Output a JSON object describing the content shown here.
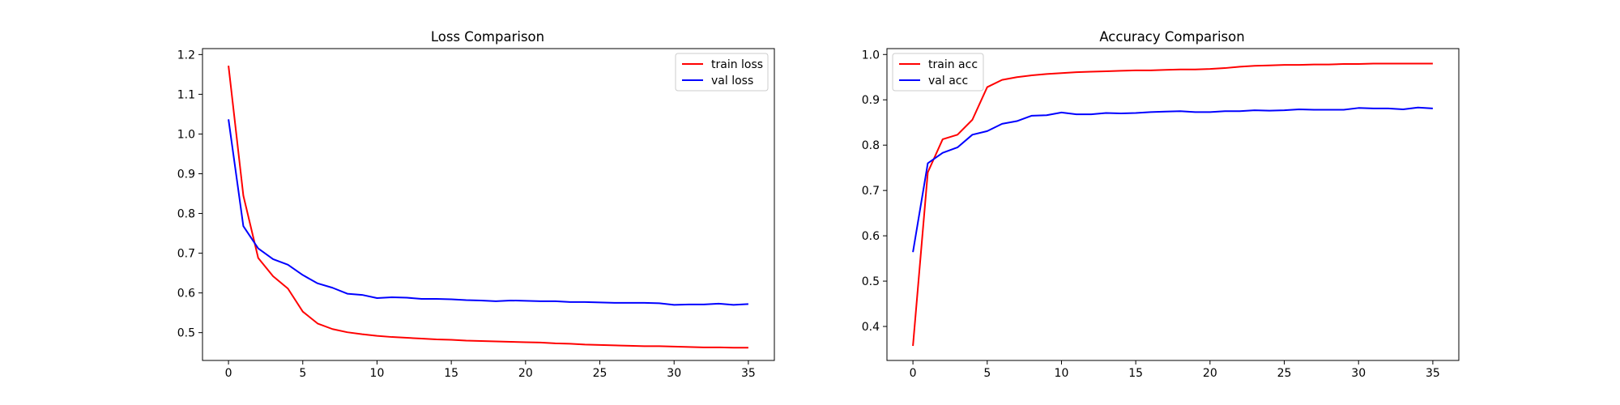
{
  "chart_data": [
    {
      "type": "line",
      "title": "Loss Comparison",
      "xlabel": "",
      "ylabel": "",
      "xlim": [
        -1.75,
        36.75
      ],
      "ylim": [
        0.43,
        1.215
      ],
      "xticks": [
        0,
        5,
        10,
        15,
        20,
        25,
        30,
        35
      ],
      "yticks": [
        0.5,
        0.6,
        0.7,
        0.8,
        0.9,
        1.0,
        1.1,
        1.2
      ],
      "legend": "top-right",
      "grid": false,
      "x": [
        0,
        1,
        2,
        3,
        4,
        5,
        6,
        7,
        8,
        9,
        10,
        11,
        12,
        13,
        14,
        15,
        16,
        17,
        18,
        19,
        20,
        21,
        22,
        23,
        24,
        25,
        26,
        27,
        28,
        29,
        30,
        31,
        32,
        33,
        34,
        35
      ],
      "series": [
        {
          "name": "train loss",
          "color": "#ff0000",
          "values": [
            1.172,
            0.845,
            0.688,
            0.642,
            0.611,
            0.553,
            0.523,
            0.509,
            0.501,
            0.496,
            0.492,
            0.489,
            0.487,
            0.485,
            0.483,
            0.482,
            0.48,
            0.479,
            0.478,
            0.477,
            0.476,
            0.475,
            0.473,
            0.472,
            0.47,
            0.469,
            0.468,
            0.467,
            0.466,
            0.466,
            0.465,
            0.464,
            0.463,
            0.463,
            0.462,
            0.462
          ]
        },
        {
          "name": "val loss",
          "color": "#0000ff",
          "values": [
            1.037,
            0.768,
            0.712,
            0.685,
            0.671,
            0.645,
            0.624,
            0.613,
            0.598,
            0.595,
            0.587,
            0.589,
            0.588,
            0.585,
            0.585,
            0.584,
            0.582,
            0.581,
            0.579,
            0.581,
            0.58,
            0.579,
            0.579,
            0.577,
            0.577,
            0.576,
            0.575,
            0.575,
            0.575,
            0.574,
            0.57,
            0.571,
            0.571,
            0.573,
            0.57,
            0.572
          ]
        }
      ]
    },
    {
      "type": "line",
      "title": "Accuracy Comparison",
      "xlabel": "",
      "ylabel": "",
      "xlim": [
        -1.75,
        36.75
      ],
      "ylim": [
        0.325,
        1.013
      ],
      "xticks": [
        0,
        5,
        10,
        15,
        20,
        25,
        30,
        35
      ],
      "yticks": [
        0.4,
        0.5,
        0.6,
        0.7,
        0.8,
        0.9,
        1.0
      ],
      "legend": "top-left",
      "grid": false,
      "x": [
        0,
        1,
        2,
        3,
        4,
        5,
        6,
        7,
        8,
        9,
        10,
        11,
        12,
        13,
        14,
        15,
        16,
        17,
        18,
        19,
        20,
        21,
        22,
        23,
        24,
        25,
        26,
        27,
        28,
        29,
        30,
        31,
        32,
        33,
        34,
        35
      ],
      "series": [
        {
          "name": "train acc",
          "color": "#ff0000",
          "values": [
            0.357,
            0.74,
            0.813,
            0.823,
            0.856,
            0.928,
            0.944,
            0.95,
            0.954,
            0.957,
            0.959,
            0.961,
            0.962,
            0.963,
            0.964,
            0.965,
            0.965,
            0.966,
            0.967,
            0.967,
            0.968,
            0.97,
            0.973,
            0.975,
            0.976,
            0.977,
            0.977,
            0.978,
            0.978,
            0.979,
            0.979,
            0.98,
            0.98,
            0.98,
            0.98,
            0.98
          ]
        },
        {
          "name": "val acc",
          "color": "#0000ff",
          "values": [
            0.564,
            0.76,
            0.783,
            0.795,
            0.823,
            0.831,
            0.847,
            0.853,
            0.865,
            0.866,
            0.872,
            0.868,
            0.868,
            0.871,
            0.87,
            0.871,
            0.873,
            0.874,
            0.875,
            0.873,
            0.873,
            0.875,
            0.875,
            0.877,
            0.876,
            0.877,
            0.879,
            0.878,
            0.878,
            0.878,
            0.882,
            0.881,
            0.881,
            0.879,
            0.883,
            0.881
          ]
        }
      ]
    }
  ]
}
